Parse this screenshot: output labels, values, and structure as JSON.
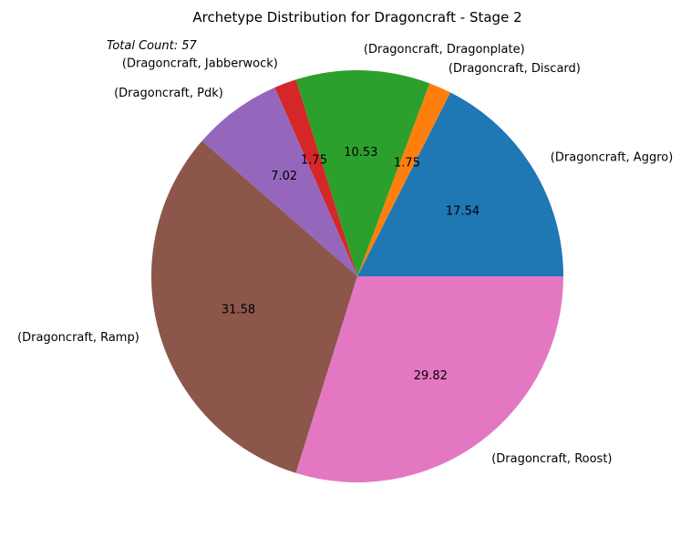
{
  "chart_data": {
    "type": "pie",
    "title": "Archetype Distribution for Dragoncraft - Stage 2",
    "annotation": "Total Count: 57",
    "categories": [
      "(Dragoncraft, Aggro)",
      "(Dragoncraft, Discard)",
      "(Dragoncraft, Dragonplate)",
      "(Dragoncraft, Jabberwock)",
      "(Dragoncraft, Pdk)",
      "(Dragoncraft, Ramp)",
      "(Dragoncraft, Roost)"
    ],
    "values": [
      17.54,
      1.75,
      10.53,
      1.75,
      7.02,
      31.58,
      29.82
    ],
    "value_labels": [
      "17.54",
      "1.75",
      "10.53",
      "1.75",
      "7.02",
      "31.58",
      "29.82"
    ],
    "colors": [
      "#1f77b4",
      "#ff7f0e",
      "#2ca02c",
      "#d62728",
      "#9467bd",
      "#8c564b",
      "#e377c2"
    ],
    "start_angle": 0,
    "direction": "counterclockwise"
  }
}
